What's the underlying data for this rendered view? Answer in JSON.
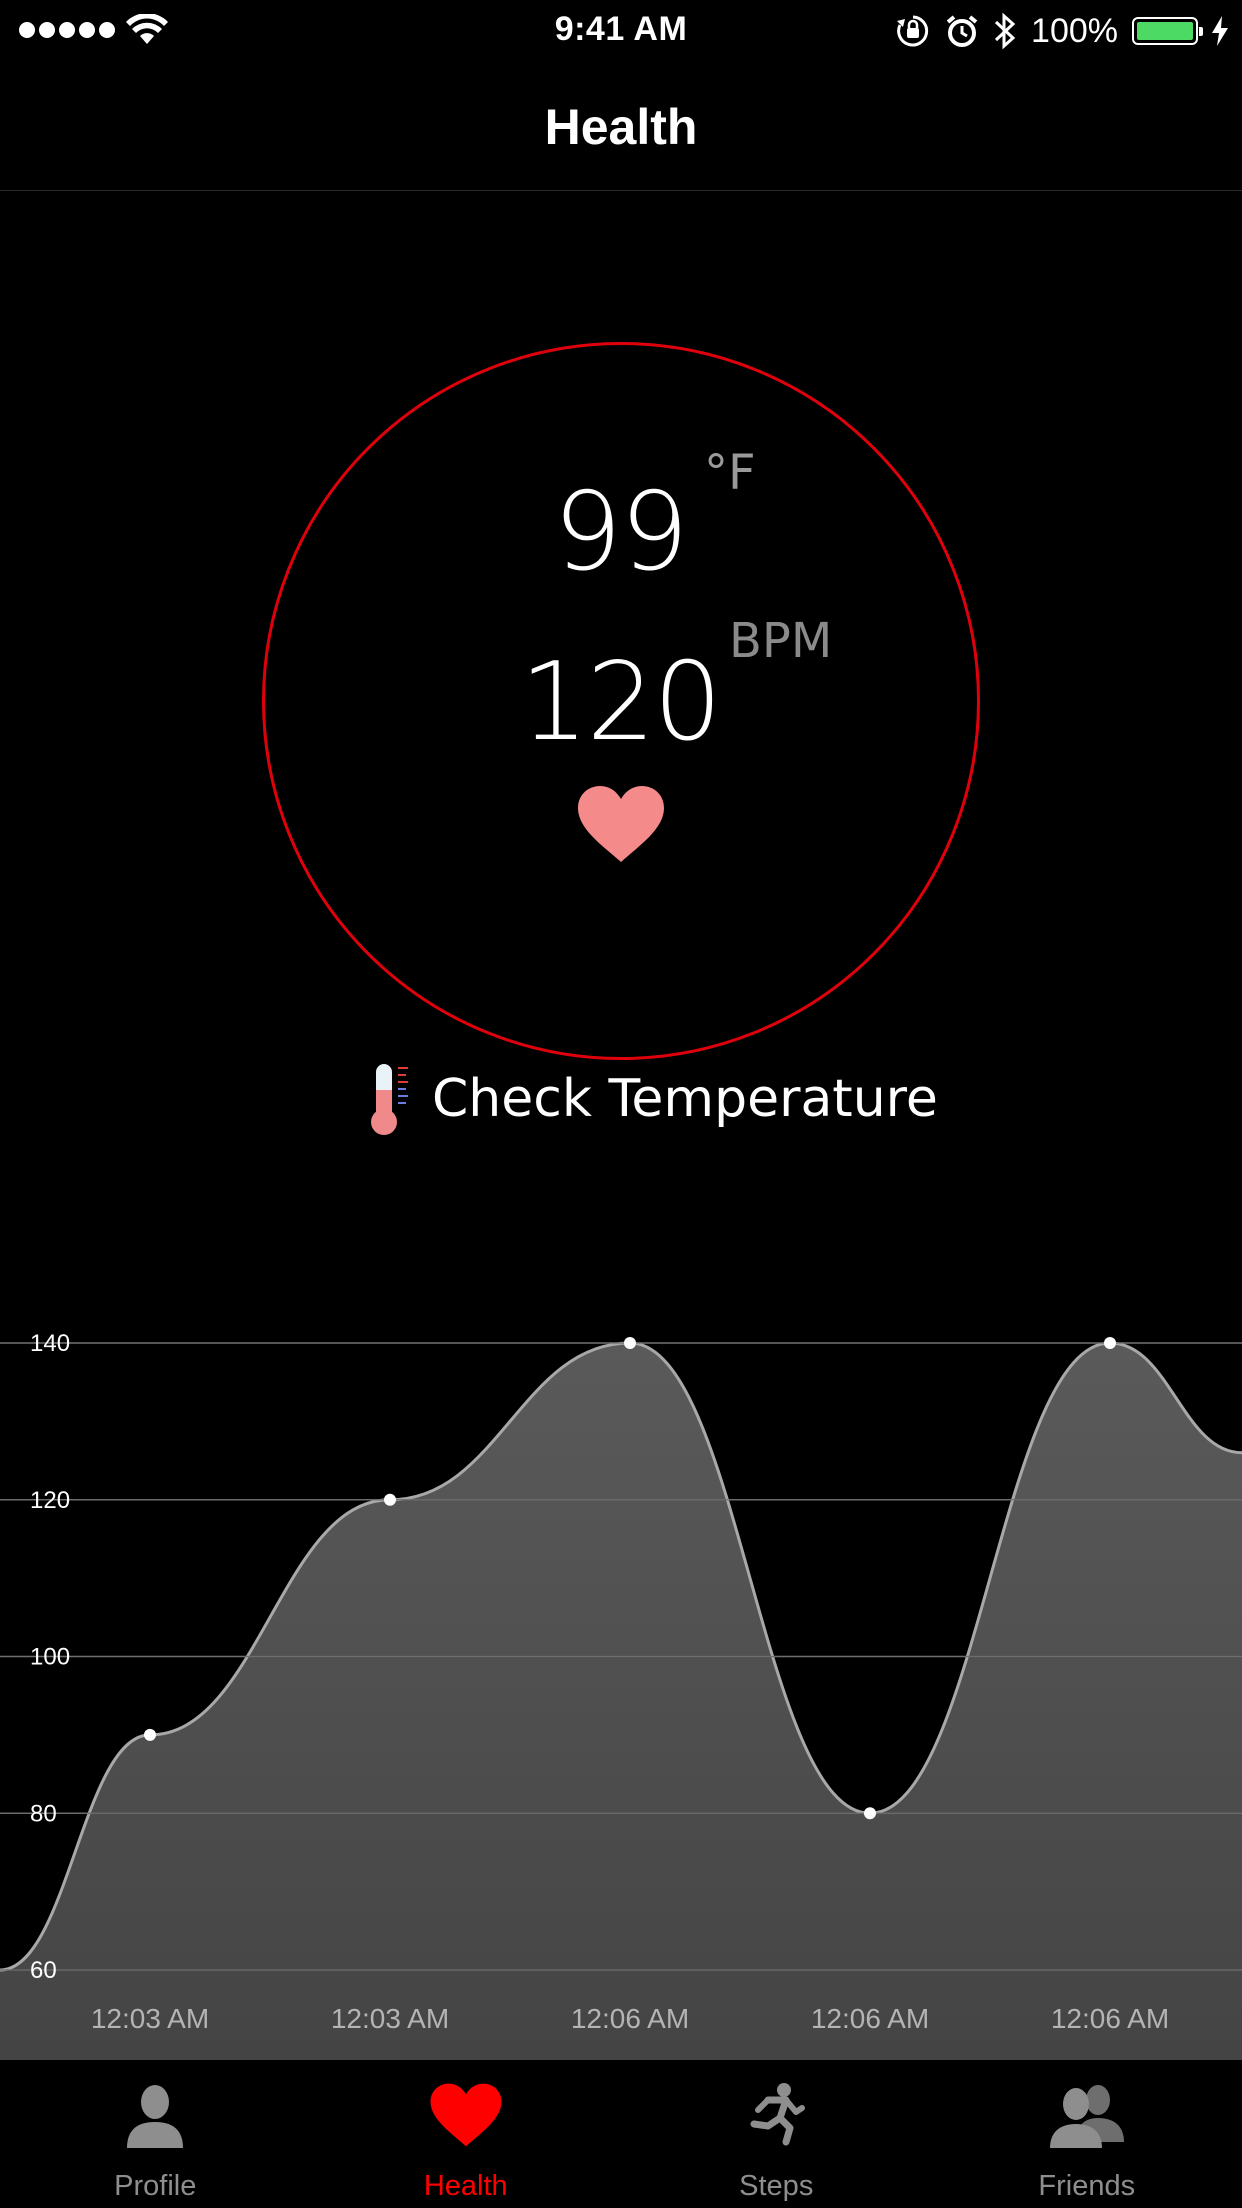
{
  "status_bar": {
    "time": "9:41 AM",
    "battery": "100%"
  },
  "nav": {
    "title": "Health"
  },
  "gauge": {
    "temperature": "99",
    "temperature_unit": "°F",
    "heart_rate": "120",
    "heart_rate_unit": "BPM",
    "ring_color": "#e0000c"
  },
  "check_temperature": {
    "label": "Check Temperature"
  },
  "chart_data": {
    "type": "area",
    "x": [
      "12:03 AM",
      "12:03 AM",
      "12:06 AM",
      "12:06 AM",
      "12:06 AM"
    ],
    "values": [
      90,
      120,
      140,
      80,
      140
    ],
    "ylim": [
      60,
      140
    ],
    "yticks": [
      "60",
      "80",
      "100",
      "120",
      "140"
    ],
    "grid": true
  },
  "tabs": [
    {
      "label": "Profile",
      "icon": "person-icon",
      "active": false
    },
    {
      "label": "Health",
      "icon": "heart-icon",
      "active": true
    },
    {
      "label": "Steps",
      "icon": "runner-icon",
      "active": false
    },
    {
      "label": "Friends",
      "icon": "people-icon",
      "active": false
    }
  ],
  "colors": {
    "accent": "#ff0000",
    "battery": "#4cd964",
    "heart": "#f48a8a"
  }
}
